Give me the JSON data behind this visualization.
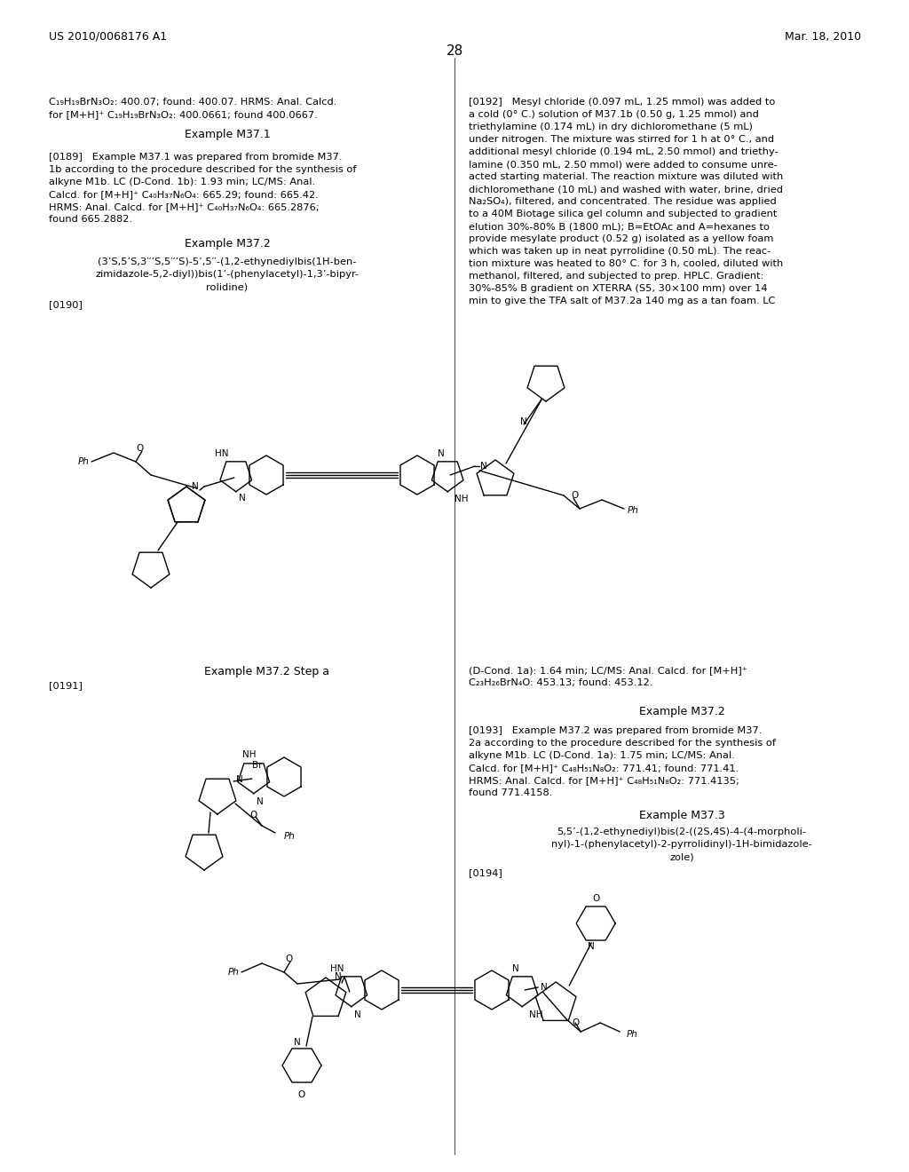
{
  "page_header_left": "US 2010/0068176 A1",
  "page_header_right": "Mar. 18, 2010",
  "page_number": "28",
  "background_color": "#ffffff",
  "left_col_lines": [
    "C₁₉H₁₉BrN₃O₂: 400.07; found: 400.07. HRMS: Anal. Calcd.",
    "for [M+H]⁺ C₁₉H₁₉BrN₃O₂: 400.0661; found 400.0667."
  ],
  "right_col_lines": [
    "[0192]   Mesyl chloride (0.097 mL, 1.25 mmol) was added to",
    "a cold (0° C.) solution of M37.1b (0.50 g, 1.25 mmol) and",
    "triethylamine (0.174 mL) in dry dichloromethane (5 mL)",
    "under nitrogen. The mixture was stirred for 1 h at 0° C., and",
    "additional mesyl chloride (0.194 mL, 2.50 mmol) and triethy-",
    "lamine (0.350 mL, 2.50 mmol) were added to consume unre-",
    "acted starting material. The reaction mixture was diluted with",
    "dichloromethane (10 mL) and washed with water, brine, dried",
    "Na₂SO₄), filtered, and concentrated. The residue was applied",
    "to a 40M Biotage silica gel column and subjected to gradient",
    "elution 30%-80% B (1800 mL); B=EtOAc and A=hexanes to",
    "provide mesylate product (0.52 g) isolated as a yellow foam",
    "which was taken up in neat pyrrolidine (0.50 mL). The reac-",
    "tion mixture was heated to 80° C. for 3 h, cooled, diluted with",
    "methanol, filtered, and subjected to prep. HPLC. Gradient:",
    "30%-85% B gradient on XTERRA (S5, 30×100 mm) over 14",
    "min to give the TFA salt of M37.2a 140 mg as a tan foam. LC"
  ]
}
